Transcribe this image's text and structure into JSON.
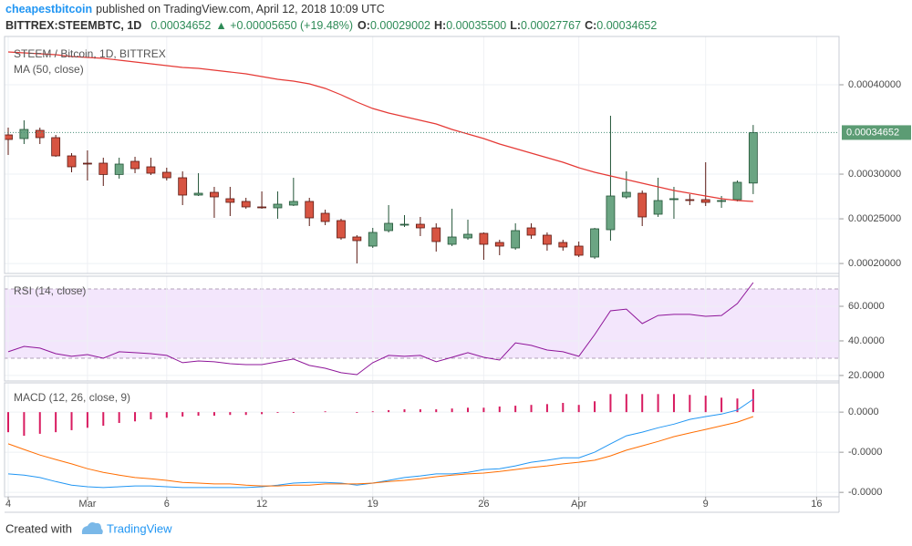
{
  "header": {
    "publisher": "cheapestbitcoin",
    "published": "published on TradingView.com, April 12, 2018 10:09 UTC",
    "symbol": "BITTREX:STEEMBTC, 1D",
    "last": "0.00034652",
    "change": "▲ +0.00005650 (+19.48%)",
    "ohlc": [
      {
        "label": "O:",
        "value": "0.00029002"
      },
      {
        "label": "H:",
        "value": "0.00035500"
      },
      {
        "label": "L:",
        "value": "0.00027767"
      },
      {
        "label": "C:",
        "value": "0.00034652"
      }
    ]
  },
  "chart_data": [
    {
      "type": "candlestick",
      "title": "STEEM / Bitcoin, 1D, BITTREX",
      "up_color": "#6ba583",
      "up_border": "#225437",
      "down_color": "#d75442",
      "down_border": "#5b1a13",
      "last_price_color": "#5c9c74",
      "categories": [
        "4",
        null,
        null,
        null,
        null,
        "Mar",
        null,
        null,
        null,
        null,
        "6",
        null,
        null,
        null,
        null,
        null,
        "12",
        null,
        null,
        null,
        null,
        null,
        null,
        "19",
        null,
        null,
        null,
        null,
        null,
        null,
        "26",
        null,
        null,
        null,
        null,
        null,
        "Apr",
        null,
        null,
        null,
        null,
        null,
        null,
        null,
        "9",
        null,
        null,
        null,
        null,
        null,
        null,
        "16",
        null
      ],
      "open": [
        0.0003439,
        0.00033982,
        0.000349,
        0.00034084,
        0.00032044,
        0.00031228,
        0.00031228,
        0.00029962,
        0.00031432,
        0.0003082,
        0.00030208,
        0.00029596,
        0.00027658,
        0.00027964,
        0.0002725,
        0.00026944,
        0.00026332,
        0.0002623,
        0.00026536,
        0.00026944,
        0.00025618,
        0.00024802,
        0.00022966,
        0.00021946,
        0.0002368,
        0.00024292,
        0.00024394,
        0.00023986,
        0.0002215,
        0.00022864,
        0.00023374,
        0.00022354,
        0.00021742,
        0.00023986,
        0.0002317,
        0.00022354,
        0.00021946,
        0.00020722,
        0.00023782,
        0.00027454,
        0.00027862,
        0.00025516,
        0.00027148,
        0.00027148,
        0.00027148,
        0.00026944,
        0.00027148,
        0.00029002,
        null,
        null,
        null,
        null,
        null
      ],
      "high": [
        0.00035206,
        0.00036022,
        0.00035206,
        0.0003439,
        0.0003235,
        0.00032656,
        0.0003184,
        0.0003184,
        0.00031942,
        0.0003184,
        0.00030718,
        0.0003031,
        0.00030106,
        0.00028576,
        0.00028576,
        0.00027352,
        0.00028066,
        0.00028066,
        0.00029596,
        0.00027352,
        0.00026026,
        0.00025006,
        0.0002317,
        0.00023986,
        0.00026536,
        0.00025414,
        0.0002521,
        0.00024496,
        0.00026128,
        0.00024904,
        0.00023476,
        0.0002266,
        0.00024496,
        0.00024496,
        0.00023476,
        0.0002266,
        0.00022456,
        0.00023986,
        0.00036532,
        0.0003031,
        0.00028168,
        0.00029596,
        0.00028576,
        0.0002776,
        0.0003133,
        0.00027556,
        0.0002929,
        0.000355,
        null,
        null,
        null,
        null,
        null
      ],
      "low": [
        0.00032146,
        0.0003337,
        0.0003337,
        0.00031942,
        0.00030208,
        0.0002929,
        0.00028678,
        0.00029494,
        0.00030106,
        0.00029902,
        0.0002929,
        0.00026536,
        0.00027556,
        0.00025108,
        0.00025312,
        0.00026128,
        0.00026128,
        0.00025006,
        0.00026434,
        0.0002419,
        0.00024292,
        0.0002266,
        0.00020008,
        0.00021742,
        0.00023476,
        0.00024088,
        0.00023068,
        0.00021334,
        0.00021946,
        0.0002266,
        0.00020416,
        0.00020926,
        0.00021538,
        0.00022762,
        0.00021436,
        0.00021436,
        0.00020722,
        0.00020518,
        0.00022558,
        0.0002725,
        0.0002419,
        0.0002521,
        0.00025006,
        0.00026536,
        0.00026434,
        0.0002623,
        0.00026944,
        0.00027767,
        null,
        null,
        null,
        null,
        null
      ],
      "close": [
        0.0003388,
        0.00035002,
        0.00034084,
        0.00032044,
        0.0003082,
        0.00031126,
        0.00029962,
        0.00031126,
        0.00030616,
        0.00030106,
        0.00029596,
        0.00027658,
        0.00027862,
        0.00027454,
        0.00026842,
        0.00026332,
        0.0002623,
        0.00026638,
        0.00026944,
        0.00025108,
        0.000247,
        0.00022864,
        0.00022558,
        0.00023476,
        0.00024496,
        0.00024394,
        0.00023986,
        0.00022456,
        0.00022966,
        0.00023272,
        0.0002215,
        0.00021946,
        0.0002368,
        0.0002317,
        0.0002215,
        0.00021844,
        0.00020926,
        0.00023884,
        0.00027556,
        0.00027964,
        0.0002521,
        0.00027046,
        0.0002725,
        0.00027046,
        0.00026842,
        0.00027046,
        0.00029086,
        0.00034652,
        null,
        null,
        null,
        null,
        null
      ],
      "series": [
        {
          "name": "MA (50, close)",
          "color": "#e53935",
          "values": [
            0.00043672,
            0.0004357,
            0.00043468,
            0.00043366,
            0.00043162,
            0.0004306,
            0.00042958,
            0.00042754,
            0.0004255,
            0.00042346,
            0.00042142,
            0.00041938,
            0.00041836,
            0.00041632,
            0.00041428,
            0.00041224,
            0.00040918,
            0.00040612,
            0.00040408,
            0.00040102,
            0.00039592,
            0.00038878,
            0.00038062,
            0.00037348,
            0.00036838,
            0.0003643,
            0.00036022,
            0.00035614,
            0.00035002,
            0.00034492,
            0.00033982,
            0.0003337,
            0.0003286,
            0.0003235,
            0.0003184,
            0.0003133,
            0.00030718,
            0.00030208,
            0.000298,
            0.00029392,
            0.00028984,
            0.00028576,
            0.00028168,
            0.00027862,
            0.00027556,
            0.0002725,
            0.00027046,
            0.00026944,
            null,
            null,
            null,
            null,
            null
          ]
        }
      ],
      "ylim": [
        0.00018886,
        0.00045406
      ],
      "yticks": [
        {
          "value": 0.0002,
          "label": "0.00020000"
        },
        {
          "value": 0.00025,
          "label": "0.00025000"
        },
        {
          "value": 0.0003,
          "label": "0.00030000"
        },
        {
          "value": 0.0004,
          "label": "0.00040000"
        }
      ],
      "grid": true
    },
    {
      "type": "line",
      "title": "RSI (14, close)",
      "bands": [
        30,
        70
      ],
      "band_color": "#f3e6fc",
      "band_line_color": "#b0a0b8",
      "series": [
        {
          "color": "#8e1599",
          "values": [
            33.7,
            36.8,
            35.8,
            32.6,
            31.1,
            32.1,
            30.0,
            33.7,
            33.2,
            32.6,
            31.6,
            27.4,
            28.4,
            27.9,
            26.8,
            26.3,
            26.3,
            27.9,
            29.5,
            25.8,
            24.2,
            21.6,
            20.5,
            27.4,
            31.6,
            31.1,
            31.6,
            27.9,
            30.5,
            33.2,
            30.5,
            28.9,
            38.9,
            37.4,
            34.7,
            33.7,
            31.1,
            43.7,
            57.4,
            58.4,
            50.0,
            54.7,
            55.3,
            55.3,
            54.2,
            54.7,
            61.6,
            73.7,
            null,
            null,
            null,
            null,
            null
          ]
        }
      ],
      "ylim": [
        16.8,
        77.4
      ],
      "yticks": [
        {
          "value": 20,
          "label": "20.0000"
        },
        {
          "value": 40,
          "label": "40.0000"
        },
        {
          "value": 60,
          "label": "60.0000"
        }
      ],
      "grid": true
    },
    {
      "type": "macd",
      "title": "MACD (12, 26, close, 9)",
      "series": [
        {
          "type": "bar",
          "color": "#d81b60",
          "values": [
            -5e-06,
            -5.9e-06,
            -5.4e-06,
            -5e-06,
            -4.5e-06,
            -3.9e-06,
            -3.4e-06,
            -2.7e-06,
            -2.3e-06,
            -1.8e-06,
            -1.4e-06,
            -1.1e-06,
            -9e-07,
            -9e-07,
            -7e-07,
            -7e-07,
            -5e-07,
            -2e-07,
            -2e-07,
            0,
            2e-07,
            0,
            -2e-07,
            2e-07,
            5e-07,
            7e-07,
            7e-07,
            7e-07,
            9e-07,
            1.1e-06,
            1.1e-06,
            1.4e-06,
            1.6e-06,
            1.8e-06,
            2e-06,
            2.3e-06,
            1.8e-06,
            2.7e-06,
            4.5e-06,
            4.5e-06,
            4.5e-06,
            4.5e-06,
            4.5e-06,
            4.3e-06,
            4.1e-06,
            3.6e-06,
            3.4e-06,
            5.7e-06,
            null,
            null,
            null,
            null,
            null
          ]
        },
        {
          "type": "line",
          "color": "#2196f3",
          "values": [
            -1.54e-05,
            -1.57e-05,
            -1.63e-05,
            -1.73e-05,
            -1.82e-05,
            -1.86e-05,
            -1.88e-05,
            -1.86e-05,
            -1.84e-05,
            -1.84e-05,
            -1.86e-05,
            -1.88e-05,
            -1.88e-05,
            -1.88e-05,
            -1.88e-05,
            -1.88e-05,
            -1.86e-05,
            -1.82e-05,
            -1.77e-05,
            -1.75e-05,
            -1.75e-05,
            -1.77e-05,
            -1.82e-05,
            -1.77e-05,
            -1.7e-05,
            -1.63e-05,
            -1.59e-05,
            -1.54e-05,
            -1.54e-05,
            -1.5e-05,
            -1.43e-05,
            -1.41e-05,
            -1.34e-05,
            -1.25e-05,
            -1.2e-05,
            -1.14e-05,
            -1.14e-05,
            -1e-05,
            -7.9e-06,
            -5.9e-06,
            -5e-06,
            -3.9e-06,
            -3e-06,
            -1.8e-06,
            -1.1e-06,
            -5e-07,
            5e-07,
            3.2e-06,
            null,
            null,
            null,
            null,
            null
          ]
        },
        {
          "type": "line",
          "color": "#ff6d00",
          "values": [
            -7.9e-06,
            -9.3e-06,
            -1.07e-05,
            -1.18e-05,
            -1.29e-05,
            -1.41e-05,
            -1.5e-05,
            -1.57e-05,
            -1.63e-05,
            -1.66e-05,
            -1.7e-05,
            -1.75e-05,
            -1.77e-05,
            -1.79e-05,
            -1.79e-05,
            -1.82e-05,
            -1.84e-05,
            -1.84e-05,
            -1.82e-05,
            -1.82e-05,
            -1.79e-05,
            -1.79e-05,
            -1.79e-05,
            -1.77e-05,
            -1.73e-05,
            -1.7e-05,
            -1.66e-05,
            -1.61e-05,
            -1.57e-05,
            -1.54e-05,
            -1.52e-05,
            -1.48e-05,
            -1.43e-05,
            -1.38e-05,
            -1.34e-05,
            -1.29e-05,
            -1.25e-05,
            -1.2e-05,
            -1.09e-05,
            -9.5e-06,
            -8.4e-06,
            -7.3e-06,
            -6.1e-06,
            -5.2e-06,
            -4.3e-06,
            -3.4e-06,
            -2.5e-06,
            -1.1e-06,
            null,
            null,
            null,
            null,
            null
          ]
        }
      ],
      "ylim": [
        -2.11e-05,
        7.3e-06
      ],
      "yticks": [
        {
          "value": -2e-05,
          "label": "-0.0000"
        },
        {
          "value": -1e-05,
          "label": "-0.0000"
        },
        {
          "value": 0,
          "label": "0.0000"
        }
      ],
      "grid": true
    }
  ],
  "footer": {
    "created": "Created with",
    "brand": "TradingView"
  }
}
